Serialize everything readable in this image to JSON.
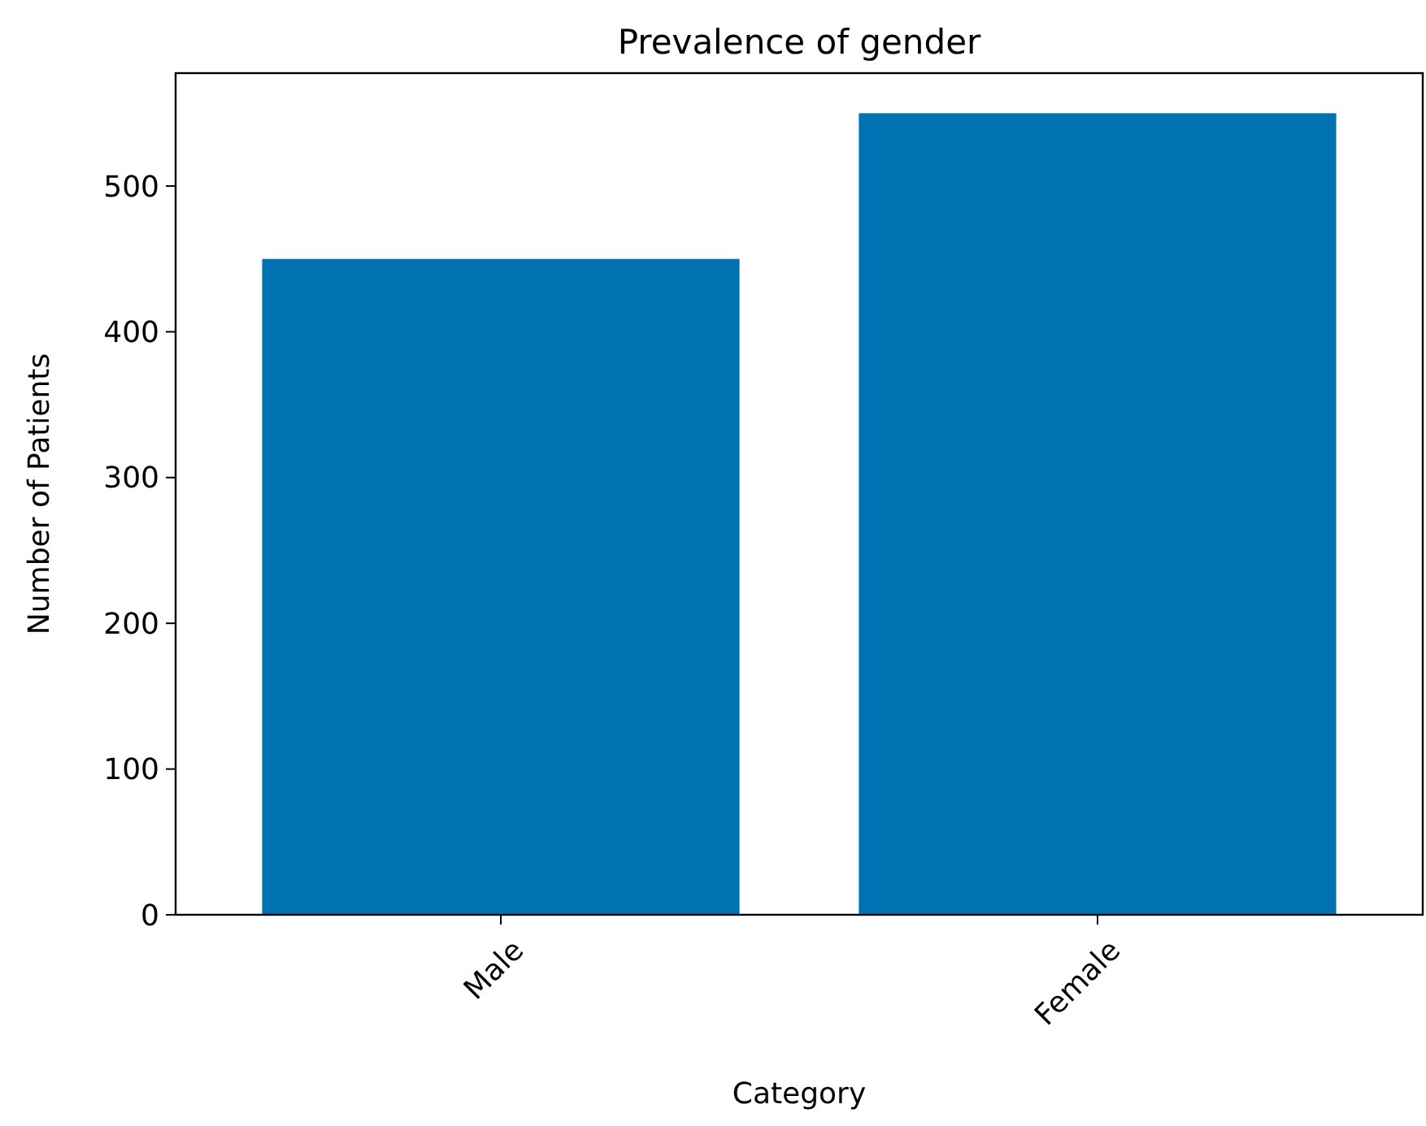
{
  "chart_data": {
    "type": "bar",
    "title": "Prevalence of gender",
    "xlabel": "Category",
    "ylabel": "Number of Patients",
    "categories": [
      "Male",
      "Female"
    ],
    "values": [
      450,
      550
    ],
    "color": "#0173b2",
    "ylim": [
      0,
      577.5
    ],
    "yticks": [
      0,
      100,
      200,
      300,
      400,
      500
    ]
  }
}
